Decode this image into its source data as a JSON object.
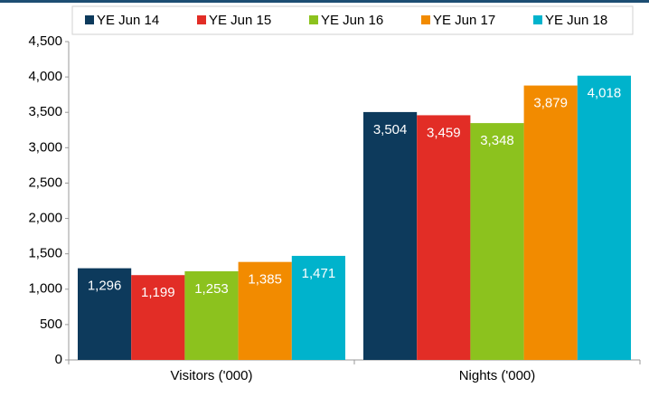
{
  "chart_data": {
    "type": "bar",
    "categories": [
      "Visitors ('000)",
      "Nights ('000)"
    ],
    "series": [
      {
        "name": "YE Jun 14",
        "color": "#0d3a5c",
        "values": [
          1296,
          3504
        ],
        "value_labels": [
          "1,296",
          "3,504"
        ]
      },
      {
        "name": "YE Jun 15",
        "color": "#e22d26",
        "values": [
          1199,
          3459
        ],
        "value_labels": [
          "1,199",
          "3,459"
        ]
      },
      {
        "name": "YE Jun 16",
        "color": "#8cc21e",
        "values": [
          1253,
          3348
        ],
        "value_labels": [
          "1,253",
          "3,348"
        ]
      },
      {
        "name": "YE Jun 17",
        "color": "#f28b00",
        "values": [
          1385,
          3879
        ],
        "value_labels": [
          "1,385",
          "3,879"
        ]
      },
      {
        "name": "YE Jun 18",
        "color": "#00b3cc",
        "values": [
          1471,
          4018
        ],
        "value_labels": [
          "1,471",
          "4,018"
        ]
      }
    ],
    "ylim": [
      0,
      4500
    ],
    "yticks": [
      0,
      500,
      {
        "value": 1000,
        "label": "1,000"
      },
      {
        "value": 1500,
        "label": "1,500"
      },
      {
        "value": 2000,
        "label": "2,000"
      },
      {
        "value": 2500,
        "label": "2,500"
      },
      {
        "value": 3000,
        "label": "3,000"
      },
      {
        "value": 3500,
        "label": "3,500"
      },
      {
        "value": 4000,
        "label": "4,000"
      },
      {
        "value": 4500,
        "label": "4,500"
      }
    ],
    "legend": "top"
  }
}
